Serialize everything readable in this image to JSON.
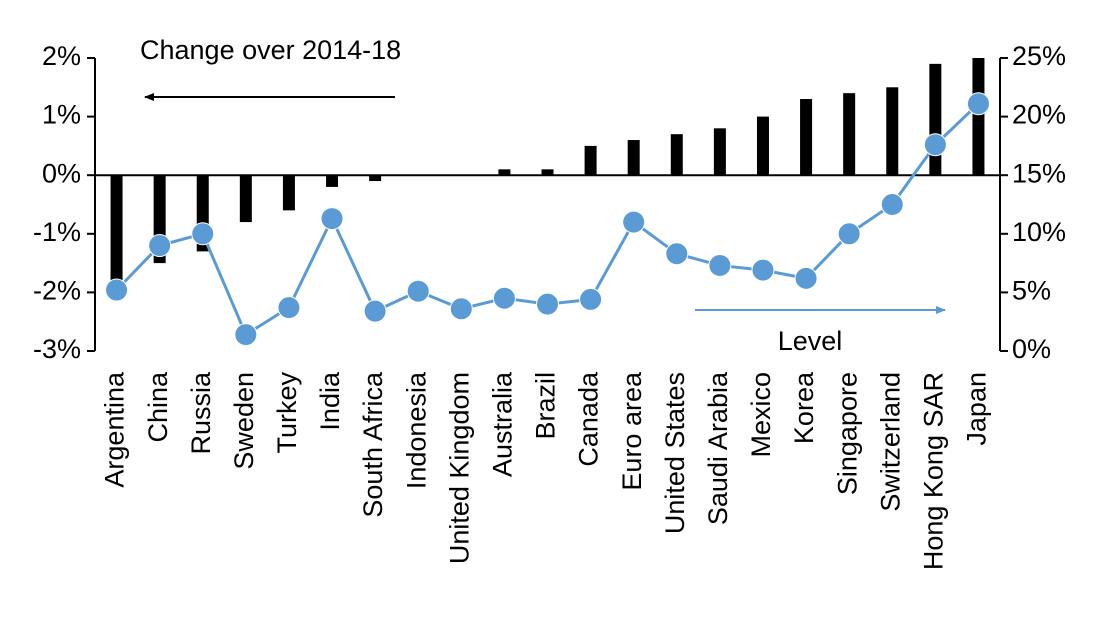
{
  "chart_data": {
    "type": "combo",
    "categories": [
      "Argentina",
      "China",
      "Russia",
      "Sweden",
      "Turkey",
      "India",
      "South Africa",
      "Indonesia",
      "United Kingdom",
      "Australia",
      "Brazil",
      "Canada",
      "Euro area",
      "United States",
      "Saudi Arabia",
      "Mexico",
      "Korea",
      "Singapore",
      "Switzerland",
      "Hong Kong SAR",
      "Japan"
    ],
    "series": [
      {
        "name": "Change over 2014-18",
        "type": "bar",
        "color": "#000000",
        "axis": "y",
        "values": [
          -1.8,
          -1.5,
          -1.3,
          -0.8,
          -0.6,
          -0.2,
          -0.1,
          0,
          0,
          0.1,
          0.1,
          0.5,
          0.6,
          0.7,
          0.8,
          1.0,
          1.3,
          1.4,
          1.5,
          1.9,
          2.0
        ]
      },
      {
        "name": "Level",
        "type": "line",
        "color": "#5b9bd5",
        "axis": "y2",
        "values": [
          5.2,
          9.0,
          10.0,
          1.4,
          3.7,
          11.3,
          3.4,
          5.1,
          3.6,
          4.5,
          4.0,
          4.4,
          11.0,
          8.3,
          7.3,
          6.9,
          6.2,
          10.0,
          12.5,
          17.6,
          21.1
        ]
      }
    ],
    "ylim": [
      -3,
      2
    ],
    "yticks": [
      {
        "value": -3,
        "label": "-3%"
      },
      {
        "value": -2,
        "label": "-2%"
      },
      {
        "value": -1,
        "label": "-1%"
      },
      {
        "value": 0,
        "label": "0%"
      },
      {
        "value": 1,
        "label": "1%"
      },
      {
        "value": 2,
        "label": "2%"
      }
    ],
    "y2lim": [
      0,
      25
    ],
    "y2ticks": [
      {
        "value": 0,
        "label": "0%"
      },
      {
        "value": 5,
        "label": "5%"
      },
      {
        "value": 10,
        "label": "10%"
      },
      {
        "value": 15,
        "label": "15%"
      },
      {
        "value": 20,
        "label": "20%"
      },
      {
        "value": 25,
        "label": "25%"
      }
    ]
  }
}
